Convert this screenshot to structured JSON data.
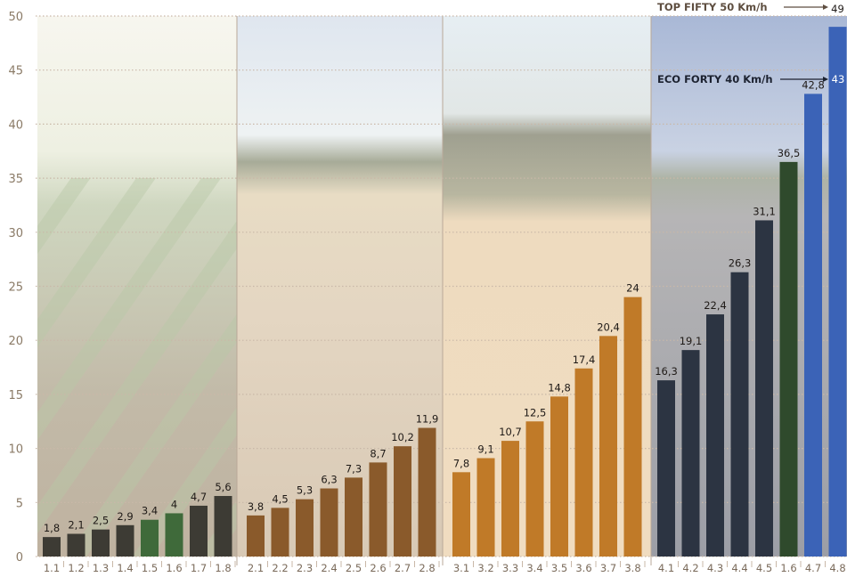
{
  "chart_data": {
    "type": "bar",
    "ylim": [
      0,
      50
    ],
    "yticks": [
      "0",
      "5",
      "10",
      "15",
      "20",
      "25",
      "30",
      "35",
      "40",
      "45",
      "50"
    ],
    "grid": "horizontal dotted",
    "groups": [
      {
        "bg": "young crop field",
        "bar_color": "#3d3b34",
        "categories": [
          "1.1",
          "1.2",
          "1.3",
          "1.4",
          "1.5",
          "1.6",
          "1.7",
          "1.8"
        ],
        "values": [
          1.8,
          2.1,
          2.5,
          2.9,
          3.4,
          4,
          4.7,
          5.6
        ],
        "value_labels": [
          "1,8",
          "2,1",
          "2,5",
          "2,9",
          "3,4",
          "4",
          "4,7",
          "5,6"
        ]
      },
      {
        "bg": "ploughed field",
        "bar_color": "#8a5a2b",
        "categories": [
          "2.1",
          "2.2",
          "2.3",
          "2.4",
          "2.5",
          "2.6",
          "2.7",
          "2.8"
        ],
        "values": [
          3.8,
          4.5,
          5.3,
          6.3,
          7.3,
          8.7,
          10.2,
          11.9
        ],
        "value_labels": [
          "3,8",
          "4,5",
          "5,3",
          "6,3",
          "7,3",
          "8,7",
          "10,2",
          "11,9"
        ]
      },
      {
        "bg": "wheat field",
        "bar_color": "#c07a28",
        "categories": [
          "3.1",
          "3.2",
          "3.3",
          "3.4",
          "3.5",
          "3.6",
          "3.7",
          "3.8"
        ],
        "values": [
          7.8,
          9.1,
          10.7,
          12.5,
          14.8,
          17.4,
          20.4,
          24
        ],
        "value_labels": [
          "7,8",
          "9,1",
          "10,7",
          "12,5",
          "14,8",
          "17,4",
          "20,4",
          "24"
        ]
      },
      {
        "bg": "asphalt road",
        "bar_color": "#2c3442",
        "categories": [
          "4.1",
          "4.2",
          "4.3",
          "4.4",
          "4.5",
          "1.6",
          "4.7",
          "4.8"
        ],
        "values": [
          16.3,
          19.1,
          22.4,
          26.3,
          31.1,
          36.5,
          42.8,
          49
        ],
        "value_labels": [
          "16,3",
          "19,1",
          "22,4",
          "26,3",
          "31,1",
          "36,5",
          "42,8",
          "49"
        ]
      }
    ],
    "annotations": [
      {
        "text": "TOP FIFTY 50 Km/h",
        "value": 49
      },
      {
        "text": "ECO FORTY 40 Km/h",
        "value": 43
      }
    ]
  },
  "colors": {
    "grid": "#c9b8a8",
    "axis_text": "#8a7a66",
    "label_text": "#1f1a17"
  }
}
